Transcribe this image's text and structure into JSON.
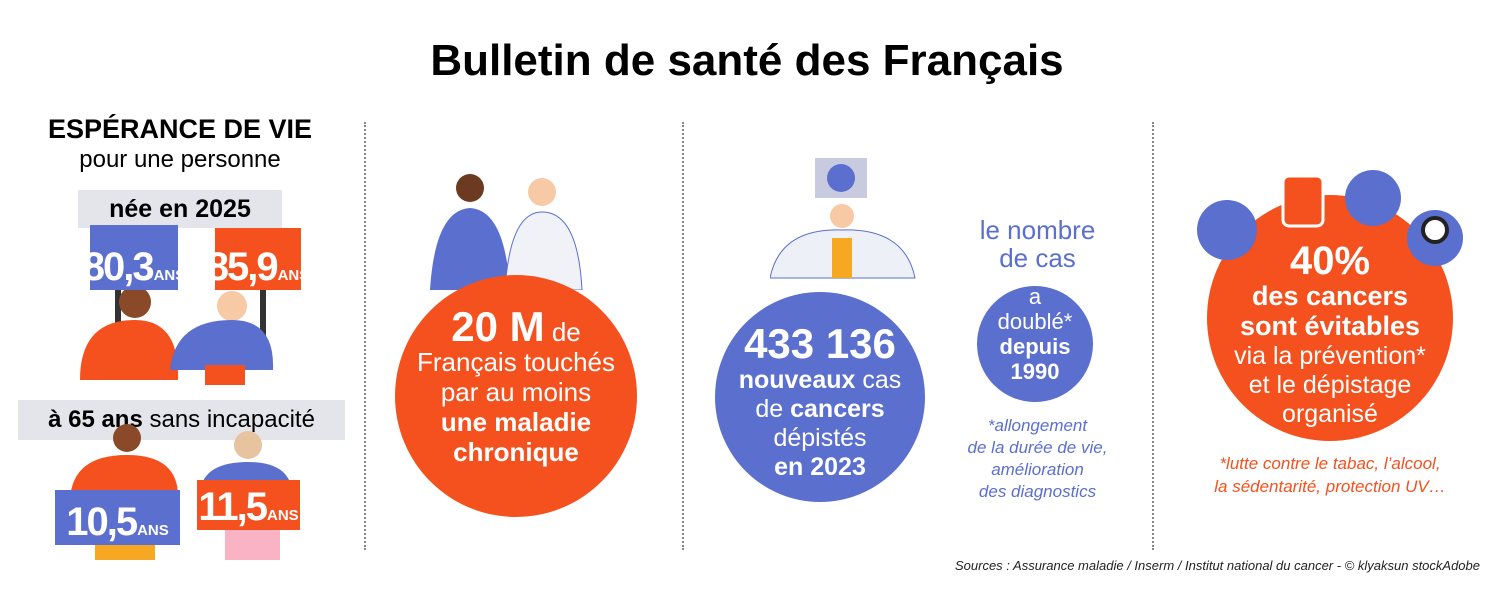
{
  "header": {
    "title": "Bulletin de santé des Français"
  },
  "panels": [
    {
      "heading": "ESPÉRANCE DE VIE",
      "subheading": "pour une personne",
      "born_label": "née en 2025",
      "born_signs": [
        {
          "value": "80,3",
          "unit": "ANS"
        },
        {
          "value": "85,9",
          "unit": "ANS"
        }
      ],
      "age65_bold": "à 65 ans",
      "age65_rest": "sans incapacité",
      "age65_signs": [
        {
          "value": "10,5",
          "unit": "ANS"
        },
        {
          "value": "11,5",
          "unit": "ANS"
        }
      ]
    },
    {
      "number": "20 M",
      "after_number": "de",
      "line1": "Français touchés",
      "line2": "par au moins",
      "bold1": "une maladie",
      "bold2": "chronique"
    },
    {
      "number": "433 136",
      "bold_new": "nouveaux",
      "cas": "cas",
      "de": "de",
      "bold_cancers": "cancers",
      "depistes": "dépistés",
      "bold_year": "en 2023",
      "side_heading": [
        "le nombre",
        "de cas"
      ],
      "side_circle": [
        "a",
        "doublé*"
      ],
      "side_bold": [
        "depuis",
        "1990"
      ],
      "note": [
        "*allongement",
        "de la durée de vie,",
        "amélioration",
        "des diagnostics"
      ]
    },
    {
      "number": "40%",
      "bold": [
        "des cancers",
        "sont évitables"
      ],
      "regular": [
        "via la prévention*",
        "et le dépistage",
        "organisé"
      ],
      "note": [
        "*lutte contre le tabac, l’alcool,",
        "la sédentarité, protection UV…"
      ]
    }
  ],
  "footer": {
    "sources": "Sources : Assurance maladie / Inserm / Institut national du cancer - © klyaksun stockAdobe"
  }
}
